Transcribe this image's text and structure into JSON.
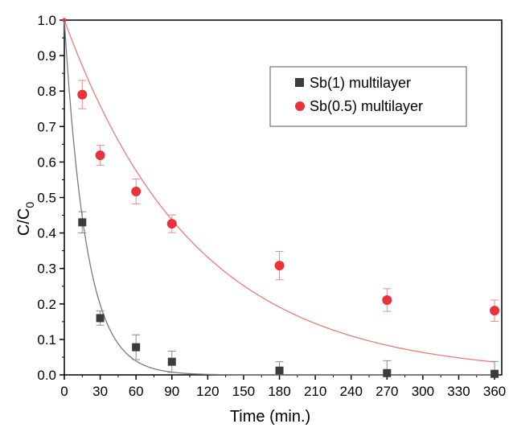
{
  "chart_data": {
    "type": "scatter",
    "xlabel": "Time (min.)",
    "ylabel_main": "C/C",
    "ylabel_sub": "0",
    "xlim": [
      0,
      366
    ],
    "ylim": [
      0,
      1.0
    ],
    "x_ticks": [
      0,
      30,
      60,
      90,
      120,
      150,
      180,
      210,
      240,
      270,
      300,
      330,
      360
    ],
    "y_ticks": [
      0.0,
      0.1,
      0.2,
      0.3,
      0.4,
      0.5,
      0.6,
      0.7,
      0.8,
      0.9,
      1.0
    ],
    "x_tick_labels": [
      "0",
      "30",
      "60",
      "90",
      "120",
      "150",
      "180",
      "210",
      "240",
      "270",
      "300",
      "330",
      "360"
    ],
    "y_tick_labels": [
      "0.0",
      "0.1",
      "0.2",
      "0.3",
      "0.4",
      "0.5",
      "0.6",
      "0.7",
      "0.8",
      "0.9",
      "1.0"
    ],
    "grid": false,
    "legend_position": "top-right",
    "series": [
      {
        "name": "Sb(1) multilayer",
        "marker": "square",
        "color": "#3c3c3c",
        "fit_color": "#7a7a7a",
        "fit_rate": 0.054,
        "x": [
          0,
          15,
          30,
          60,
          90,
          180,
          270,
          360
        ],
        "y": [
          1.0,
          0.43,
          0.16,
          0.078,
          0.037,
          0.012,
          0.005,
          0.003
        ],
        "err": [
          0,
          0.03,
          0.02,
          0.035,
          0.03,
          0.025,
          0.035,
          0.035
        ]
      },
      {
        "name": "Sb(0.5) multilayer",
        "marker": "circle",
        "color": "#e8333a",
        "fit_color": "#f07a76",
        "fit_rate": 0.0092,
        "x": [
          0,
          15,
          30,
          60,
          90,
          180,
          270,
          360
        ],
        "y": [
          1.0,
          0.79,
          0.619,
          0.517,
          0.426,
          0.308,
          0.211,
          0.181
        ],
        "err": [
          0,
          0.04,
          0.028,
          0.035,
          0.025,
          0.04,
          0.032,
          0.03
        ]
      }
    ]
  }
}
